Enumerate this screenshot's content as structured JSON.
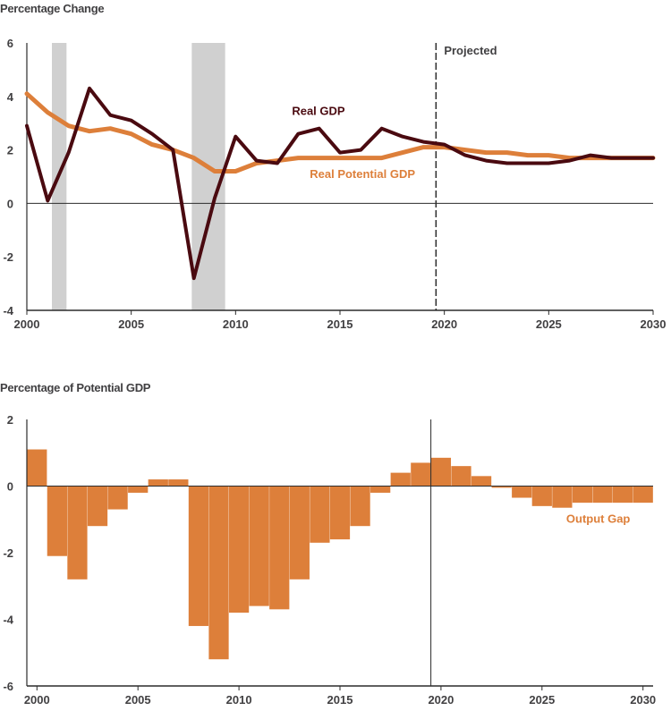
{
  "colors": {
    "real_gdp": "#4a0a10",
    "potential": "#dd7f3a",
    "bar": "#dd7f3a",
    "recession": "#d0d0d0",
    "axis": "#2b2b2b",
    "text": "#414042"
  },
  "chart_data": [
    {
      "type": "line",
      "ylabel": "Percentage Change",
      "xlim": [
        2000,
        2030
      ],
      "ylim": [
        -4,
        6
      ],
      "x_ticks": [
        2000,
        2005,
        2010,
        2015,
        2020,
        2025,
        2030
      ],
      "x_tick_labels": [
        "2000",
        "2005",
        "2010",
        "2015",
        "2020",
        "2025",
        "2030"
      ],
      "y_ticks": [
        -4,
        -2,
        0,
        2,
        4,
        6
      ],
      "y_tick_labels": [
        "-4",
        "-2",
        "0",
        "2",
        "4",
        "6"
      ],
      "projection_start": 2019.6,
      "projection_label": "Projected",
      "recessions": [
        [
          2001.2,
          2001.9
        ],
        [
          2007.9,
          2009.5
        ]
      ],
      "series": [
        {
          "name": "Real GDP",
          "x": [
            2000,
            2001,
            2002,
            2003,
            2004,
            2005,
            2006,
            2007,
            2008,
            2009,
            2010,
            2011,
            2012,
            2013,
            2014,
            2015,
            2016,
            2017,
            2018,
            2019,
            2020,
            2021,
            2022,
            2023,
            2024,
            2025,
            2026,
            2027,
            2028,
            2029,
            2030
          ],
          "values": [
            2.9,
            0.1,
            1.9,
            4.3,
            3.3,
            3.1,
            2.6,
            2.0,
            -2.8,
            0.2,
            2.5,
            1.6,
            1.5,
            2.6,
            2.8,
            1.9,
            2.0,
            2.8,
            2.5,
            2.3,
            2.2,
            1.8,
            1.6,
            1.5,
            1.5,
            1.5,
            1.6,
            1.8,
            1.7,
            1.7,
            1.7
          ]
        },
        {
          "name": "Real Potential GDP",
          "x": [
            2000,
            2001,
            2002,
            2003,
            2004,
            2005,
            2006,
            2007,
            2008,
            2009,
            2010,
            2011,
            2012,
            2013,
            2014,
            2015,
            2016,
            2017,
            2018,
            2019,
            2020,
            2021,
            2022,
            2023,
            2024,
            2025,
            2026,
            2027,
            2028,
            2029,
            2030
          ],
          "values": [
            4.1,
            3.4,
            2.9,
            2.7,
            2.8,
            2.6,
            2.2,
            2.0,
            1.7,
            1.2,
            1.2,
            1.5,
            1.6,
            1.7,
            1.7,
            1.7,
            1.7,
            1.7,
            1.9,
            2.1,
            2.1,
            2.0,
            1.9,
            1.9,
            1.8,
            1.8,
            1.7,
            1.7,
            1.7,
            1.7,
            1.7
          ]
        }
      ]
    },
    {
      "type": "bar",
      "ylabel": "Percentage of Potential GDP",
      "xlim": [
        1999.5,
        2030.5
      ],
      "ylim": [
        -6,
        2
      ],
      "x_ticks": [
        2000,
        2005,
        2010,
        2015,
        2020,
        2025,
        2030
      ],
      "x_tick_labels": [
        "2000",
        "2005",
        "2010",
        "2015",
        "2020",
        "2025",
        "2030"
      ],
      "y_ticks": [
        -6,
        -4,
        -2,
        0,
        2
      ],
      "y_tick_labels": [
        "-6",
        "-4",
        "-2",
        "0",
        "2"
      ],
      "projection_start": 2019.5,
      "series": [
        {
          "name": "Output Gap",
          "categories": [
            2000,
            2001,
            2002,
            2003,
            2004,
            2005,
            2006,
            2007,
            2008,
            2009,
            2010,
            2011,
            2012,
            2013,
            2014,
            2015,
            2016,
            2017,
            2018,
            2019,
            2020,
            2021,
            2022,
            2023,
            2024,
            2025,
            2026,
            2027,
            2028,
            2029,
            2030
          ],
          "values": [
            1.1,
            -2.1,
            -2.8,
            -1.2,
            -0.7,
            -0.2,
            0.2,
            0.2,
            -4.2,
            -5.2,
            -3.8,
            -3.6,
            -3.7,
            -2.8,
            -1.7,
            -1.6,
            -1.2,
            -0.2,
            0.4,
            0.7,
            0.85,
            0.6,
            0.3,
            -0.05,
            -0.35,
            -0.6,
            -0.65,
            -0.5,
            -0.5,
            -0.5,
            -0.5
          ]
        }
      ]
    }
  ]
}
